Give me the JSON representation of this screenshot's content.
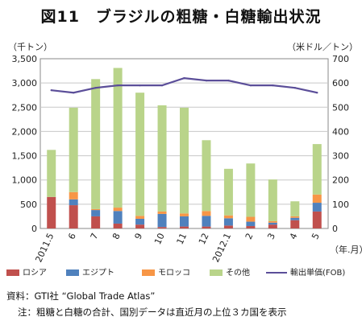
{
  "title": "図11　ブラジルの粗糖・白糖輸出状況",
  "left_axis_unit": "（千トン）",
  "right_axis_unit": "（米ドル／トン）",
  "x_axis_unit": "（年.月）",
  "source": "資料：GTI社 “Global Trade Atlas”",
  "footnote": "注：粗糖と白糖の合計、国別データは直近月の上位３カ国を表示",
  "legend": {
    "russia": "ロシア",
    "egypt": "エジプト",
    "morocco": "モロッコ",
    "other": "その他",
    "price": "輸出単価(FOB)"
  },
  "colors": {
    "russia": "#c0504d",
    "egypt": "#4f81bd",
    "morocco": "#f79646",
    "other": "#b9d48a",
    "price": "#5b4e99"
  },
  "chart_data": {
    "type": "bar",
    "stacked": true,
    "categories": [
      "2011.5",
      "6",
      "7",
      "8",
      "9",
      "10",
      "11",
      "12",
      "2012.1",
      "2",
      "3",
      "4",
      "5"
    ],
    "series": [
      {
        "name": "ロシア",
        "key": "russia",
        "values": [
          650,
          480,
          250,
          100,
          80,
          30,
          40,
          40,
          60,
          50,
          80,
          170,
          350
        ]
      },
      {
        "name": "エジプト",
        "key": "egypt",
        "values": [
          0,
          120,
          130,
          260,
          120,
          270,
          210,
          220,
          150,
          90,
          40,
          50,
          180
        ]
      },
      {
        "name": "モロッコ",
        "key": "morocco",
        "values": [
          0,
          150,
          20,
          70,
          60,
          50,
          60,
          100,
          60,
          100,
          30,
          30,
          170
        ]
      },
      {
        "name": "その他",
        "key": "other",
        "values": [
          970,
          1740,
          2680,
          2880,
          2540,
          2190,
          2180,
          1460,
          960,
          1100,
          860,
          310,
          1040
        ]
      }
    ],
    "line_series": {
      "name": "輸出単価(FOB)",
      "key": "price",
      "axis": "right",
      "values": [
        570,
        560,
        580,
        590,
        590,
        590,
        620,
        610,
        610,
        590,
        590,
        580,
        560
      ]
    },
    "y_left": {
      "min": 0,
      "max": 3500,
      "step": 500,
      "ticks": [
        "0",
        "500",
        "1,000",
        "1,500",
        "2,000",
        "2,500",
        "3,000",
        "3,500"
      ]
    },
    "y_right": {
      "min": 0,
      "max": 700,
      "step": 100,
      "ticks": [
        "0",
        "100",
        "200",
        "300",
        "400",
        "500",
        "600",
        "700"
      ]
    },
    "grid": true,
    "legend_position": "bottom"
  }
}
